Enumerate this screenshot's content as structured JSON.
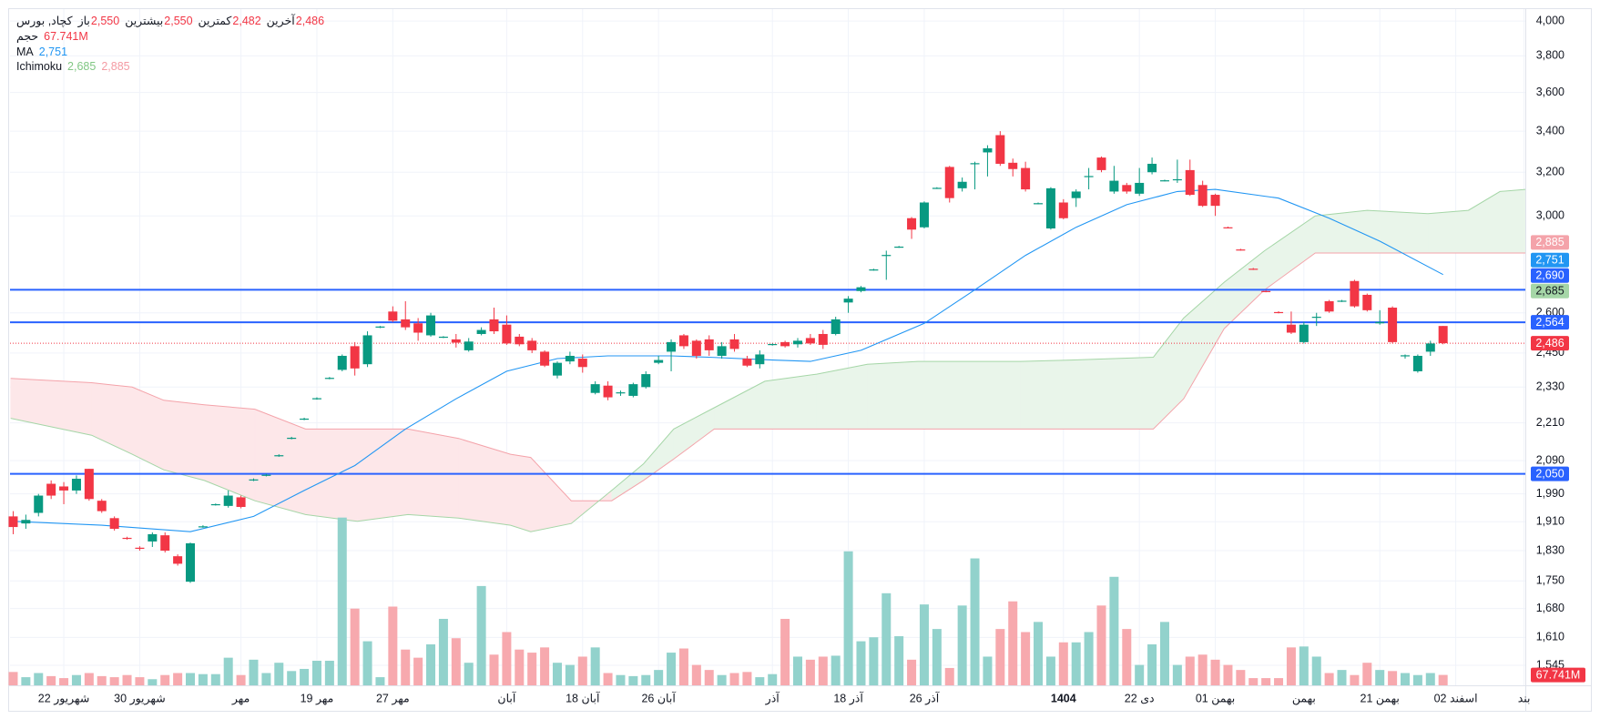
{
  "legend": {
    "symbol": "کچاد, بورس",
    "ohlc": [
      {
        "name": "باز",
        "value": "2,550"
      },
      {
        "name": "بیشترین",
        "value": "2,550"
      },
      {
        "name": "کمترین",
        "value": "2,482"
      },
      {
        "name": "آخرین",
        "value": "2,486"
      }
    ],
    "ohlc_color": "#f23645",
    "volume": {
      "name": "حجم",
      "value": "67.741M",
      "color": "#f23645"
    },
    "ma": {
      "name": "MA",
      "value": "2,751",
      "color": "#2196f3"
    },
    "ichimoku": {
      "name": "Ichimoku",
      "values": [
        {
          "value": "2,685",
          "color": "#81c784"
        },
        {
          "value": "2,885",
          "color": "#f49ba3"
        }
      ]
    }
  },
  "chart_data": {
    "type": "candlestick",
    "up_color": "#089981",
    "down_color": "#f23645",
    "open": [
      1925,
      1905,
      1935,
      2020,
      2012,
      2000,
      2065,
      1970,
      1920,
      1865,
      1838,
      1855,
      1872,
      1815,
      1748,
      1895,
      1958,
      1955,
      1980,
      2030,
      2045,
      2105,
      2160,
      2222,
      2290,
      2360,
      2390,
      2475,
      2410,
      2545,
      2605,
      2575,
      2560,
      2515,
      2508,
      2500,
      2460,
      2520,
      2575,
      2555,
      2510,
      2495,
      2455,
      2370,
      2420,
      2430,
      2310,
      2335,
      2310,
      2300,
      2330,
      2415,
      2455,
      2515,
      2495,
      2500,
      2440,
      2500,
      2430,
      2410,
      2480,
      2490,
      2482,
      2505,
      2520,
      2520,
      2640,
      2685,
      2770,
      2830,
      2865,
      2990,
      2950,
      3125,
      3225,
      3125,
      3240,
      3295,
      3380,
      3245,
      3220,
      3055,
      2945,
      3060,
      3080,
      3180,
      3270,
      3110,
      3140,
      3100,
      3200,
      3160,
      3165,
      3210,
      3140,
      3095,
      2950,
      2855,
      2775,
      2685,
      2603,
      2555,
      2490,
      2583,
      2645,
      2645,
      2725,
      2670,
      2560,
      2620,
      2440,
      2385,
      2455,
      2550
    ],
    "high": [
      1940,
      1930,
      1990,
      2030,
      2025,
      2045,
      2065,
      1975,
      1925,
      1868,
      1842,
      1880,
      1880,
      1820,
      1852,
      1900,
      1962,
      2000,
      1985,
      2036,
      2050,
      2110,
      2165,
      2227,
      2295,
      2365,
      2445,
      2490,
      2530,
      2550,
      2625,
      2645,
      2580,
      2600,
      2512,
      2520,
      2505,
      2545,
      2620,
      2590,
      2520,
      2505,
      2460,
      2420,
      2455,
      2445,
      2350,
      2350,
      2318,
      2345,
      2385,
      2440,
      2500,
      2520,
      2500,
      2515,
      2490,
      2520,
      2440,
      2460,
      2485,
      2495,
      2505,
      2520,
      2535,
      2585,
      2665,
      2705,
      2775,
      2850,
      2870,
      2995,
      3065,
      3130,
      3230,
      3175,
      3250,
      3330,
      3400,
      3265,
      3250,
      3060,
      3130,
      3075,
      3120,
      3220,
      3275,
      3230,
      3150,
      3220,
      3270,
      3165,
      3260,
      3260,
      3160,
      3100,
      2953,
      2858,
      2778,
      2688,
      2606,
      2605,
      2565,
      2600,
      2650,
      2650,
      2730,
      2675,
      2610,
      2625,
      2445,
      2445,
      2495,
      2550
    ],
    "low": [
      1875,
      1890,
      1925,
      1975,
      1960,
      1990,
      1970,
      1935,
      1885,
      1860,
      1830,
      1840,
      1825,
      1790,
      1745,
      1893,
      1956,
      1950,
      1948,
      2028,
      2042,
      2102,
      2157,
      2219,
      2287,
      2357,
      2385,
      2370,
      2400,
      2542,
      2565,
      2535,
      2495,
      2510,
      2505,
      2470,
      2455,
      2515,
      2520,
      2480,
      2475,
      2450,
      2400,
      2360,
      2410,
      2380,
      2305,
      2285,
      2300,
      2295,
      2325,
      2410,
      2385,
      2465,
      2430,
      2440,
      2430,
      2455,
      2400,
      2395,
      2477,
      2470,
      2470,
      2480,
      2465,
      2515,
      2600,
      2680,
      2767,
      2730,
      2862,
      2900,
      2945,
      3122,
      3060,
      3110,
      3120,
      3180,
      3230,
      3180,
      3110,
      3052,
      2940,
      2985,
      3040,
      3120,
      3200,
      3100,
      3100,
      3090,
      3190,
      3157,
      3150,
      3090,
      3040,
      3000,
      2945,
      2850,
      2770,
      2680,
      2598,
      2520,
      2485,
      2550,
      2600,
      2642,
      2620,
      2605,
      2555,
      2485,
      2430,
      2380,
      2440,
      2482
    ],
    "close": [
      1895,
      1915,
      1985,
      1985,
      2000,
      2035,
      1975,
      1940,
      1890,
      1862,
      1835,
      1875,
      1830,
      1795,
      1850,
      1897,
      1960,
      1985,
      1952,
      2033,
      2047,
      2107,
      2162,
      2224,
      2292,
      2362,
      2440,
      2395,
      2515,
      2548,
      2570,
      2545,
      2525,
      2590,
      2510,
      2488,
      2492,
      2535,
      2530,
      2485,
      2482,
      2460,
      2405,
      2415,
      2440,
      2400,
      2340,
      2295,
      2312,
      2340,
      2375,
      2425,
      2490,
      2475,
      2440,
      2460,
      2475,
      2465,
      2405,
      2445,
      2483,
      2475,
      2495,
      2485,
      2480,
      2575,
      2655,
      2700,
      2772,
      2832,
      2867,
      2940,
      3060,
      3127,
      3080,
      3155,
      3243,
      3315,
      3240,
      3215,
      3120,
      3057,
      3125,
      2990,
      3110,
      3182,
      3210,
      3160,
      3110,
      3150,
      3240,
      3162,
      3167,
      3095,
      3045,
      3045,
      2948,
      2853,
      2773,
      2683,
      2601,
      2525,
      2555,
      2585,
      2605,
      2647,
      2625,
      2610,
      2565,
      2490,
      2442,
      2440,
      2485,
      2486
    ],
    "volume": {
      "up_color": "#92d2cc",
      "down_color": "#f7a9ae",
      "values": [
        87,
        53,
        80,
        60,
        47,
        67,
        80,
        60,
        53,
        67,
        53,
        40,
        67,
        80,
        80,
        73,
        73,
        180,
        67,
        167,
        80,
        147,
        93,
        107,
        160,
        160,
        1093,
        500,
        287,
        53,
        513,
        233,
        180,
        267,
        433,
        307,
        147,
        647,
        200,
        347,
        233,
        213,
        247,
        147,
        133,
        187,
        247,
        80,
        67,
        60,
        67,
        100,
        213,
        240,
        133,
        100,
        67,
        80,
        87,
        53,
        73,
        433,
        187,
        167,
        187,
        193,
        873,
        287,
        313,
        600,
        320,
        167,
        527,
        367,
        113,
        520,
        827,
        187,
        367,
        547,
        347,
        413,
        187,
        280,
        280,
        347,
        520,
        707,
        367,
        133,
        267,
        413,
        133,
        187,
        200,
        167,
        133,
        100,
        47,
        47,
        47,
        247,
        253,
        187,
        80,
        100,
        67,
        147,
        100,
        93,
        80,
        67,
        80,
        67.741
      ]
    },
    "y2lim": [
      0,
      4400
    ],
    "ma": {
      "color": "#2196f3",
      "x": [
        0,
        7,
        14,
        19,
        23,
        27,
        31,
        35,
        39,
        43,
        47,
        52,
        55,
        60,
        63,
        67,
        72,
        76,
        80,
        84,
        88,
        92,
        95,
        100,
        104,
        108,
        113
      ],
      "values": [
        1911,
        1900,
        1882,
        1925,
        2000,
        2075,
        2190,
        2290,
        2385,
        2430,
        2440,
        2440,
        2435,
        2425,
        2420,
        2460,
        2560,
        2690,
        2830,
        2950,
        3050,
        3110,
        3120,
        3080,
        2990,
        2890,
        2751
      ]
    },
    "ichimoku": {
      "x": [
        -0.2,
        6.2,
        9.4,
        11.9,
        15.1,
        19.1,
        23.1,
        27.2,
        31.2,
        35.2,
        39.3,
        40.9,
        44.1,
        47.3,
        49.8,
        52.2,
        55.4,
        59.4,
        63.5,
        67.5,
        71.5,
        79.6,
        83.6,
        90.1,
        92.5,
        95.7,
        98.9,
        102.9,
        107,
        111.8,
        115,
        117.5,
        119.5
      ],
      "span_a": {
        "color": "#f4a3aa",
        "values": [
          2360,
          2345,
          2330,
          2285,
          2270,
          2255,
          2190,
          2190,
          2190,
          2160,
          2110,
          2100,
          1970,
          1970,
          2030,
          2095,
          2190,
          2190,
          2190,
          2190,
          2190,
          2190,
          2190,
          2190,
          2290,
          2540,
          2690,
          2840,
          2840,
          2840,
          2840,
          2840,
          2840
        ]
      },
      "span_b": {
        "color": "#a5d6a7",
        "values": [
          2225,
          2170,
          2110,
          2062,
          2030,
          1970,
          1930,
          1911,
          1930,
          1920,
          1900,
          1882,
          1905,
          2000,
          2080,
          2190,
          2260,
          2350,
          2375,
          2410,
          2420,
          2420,
          2425,
          2435,
          2580,
          2720,
          2850,
          3000,
          3025,
          3010,
          3025,
          3110,
          3120
        ]
      },
      "down_fill": "#fde7e9",
      "up_fill": "#e9f5ea"
    },
    "hlines": {
      "color": "#2962ff",
      "values": [
        2690,
        2564,
        2050
      ]
    },
    "last_price": {
      "value": 2486,
      "color": "#f23645"
    },
    "price_tags": [
      {
        "value": 2885,
        "label": "2,885",
        "color": "#f4a3aa",
        "text_color": "#ffffff"
      },
      {
        "value": 2751,
        "label": "2,751",
        "color": "#2196f3",
        "text_color": "#ffffff"
      },
      {
        "value": 2690,
        "label": "2,690",
        "color": "#2962ff",
        "text_color": "#ffffff"
      },
      {
        "value": 2685,
        "label": "2,685",
        "color": "#a5d6a7",
        "text_color": "#131722"
      },
      {
        "value": 2564,
        "label": "2,564",
        "color": "#2962ff",
        "text_color": "#ffffff"
      },
      {
        "value": 2486,
        "label": "2,486",
        "color": "#f23645",
        "text_color": "#ffffff"
      },
      {
        "value": 2050,
        "label": "2,050",
        "color": "#2962ff",
        "text_color": "#ffffff"
      }
    ],
    "volume_tag": {
      "value": 67.741,
      "label": "67.741M",
      "color": "#f23645",
      "text_color": "#ffffff"
    },
    "xlim": [
      -0.25,
      119.5
    ],
    "ylim": [
      1500,
      4066
    ],
    "log_scale": true,
    "grid": true,
    "xticks": [
      {
        "value": 4,
        "label": "22 شهریور"
      },
      {
        "value": 10,
        "label": "30 شهریور"
      },
      {
        "value": 18,
        "label": "مهر"
      },
      {
        "value": 24,
        "label": "19 مهر"
      },
      {
        "value": 30,
        "label": "27 مهر"
      },
      {
        "value": 39,
        "label": "آبان"
      },
      {
        "value": 45,
        "label": "18 آبان"
      },
      {
        "value": 51,
        "label": "26 آبان"
      },
      {
        "value": 60,
        "label": "آذر"
      },
      {
        "value": 66,
        "label": "18 آذر"
      },
      {
        "value": 72,
        "label": "26 آذر"
      },
      {
        "value": 83,
        "label": "1404",
        "bold": true
      },
      {
        "value": 89,
        "label": "22 دی"
      },
      {
        "value": 95,
        "label": "01 بهمن"
      },
      {
        "value": 102,
        "label": "بهمن"
      },
      {
        "value": 108,
        "label": "21 بهمن"
      },
      {
        "value": 114,
        "label": "02 اسفند"
      },
      {
        "value": 119.4,
        "label": "بند"
      }
    ],
    "yticks": [
      {
        "value": 4000,
        "label": "4,000"
      },
      {
        "value": 3800,
        "label": "3,800"
      },
      {
        "value": 3600,
        "label": "3,600"
      },
      {
        "value": 3400,
        "label": "3,400"
      },
      {
        "value": 3200,
        "label": "3,200"
      },
      {
        "value": 3000,
        "label": "3,000"
      },
      {
        "value": 2600,
        "label": "2,600"
      },
      {
        "value": 2450,
        "label": "2,450"
      },
      {
        "value": 2330,
        "label": "2,330"
      },
      {
        "value": 2210,
        "label": "2,210"
      },
      {
        "value": 2090,
        "label": "2,090"
      },
      {
        "value": 1990,
        "label": "1,990"
      },
      {
        "value": 1910,
        "label": "1,910"
      },
      {
        "value": 1830,
        "label": "1,830"
      },
      {
        "value": 1750,
        "label": "1,750"
      },
      {
        "value": 1680,
        "label": "1,680"
      },
      {
        "value": 1610,
        "label": "1,610"
      },
      {
        "value": 1545,
        "label": "1,545"
      }
    ]
  }
}
